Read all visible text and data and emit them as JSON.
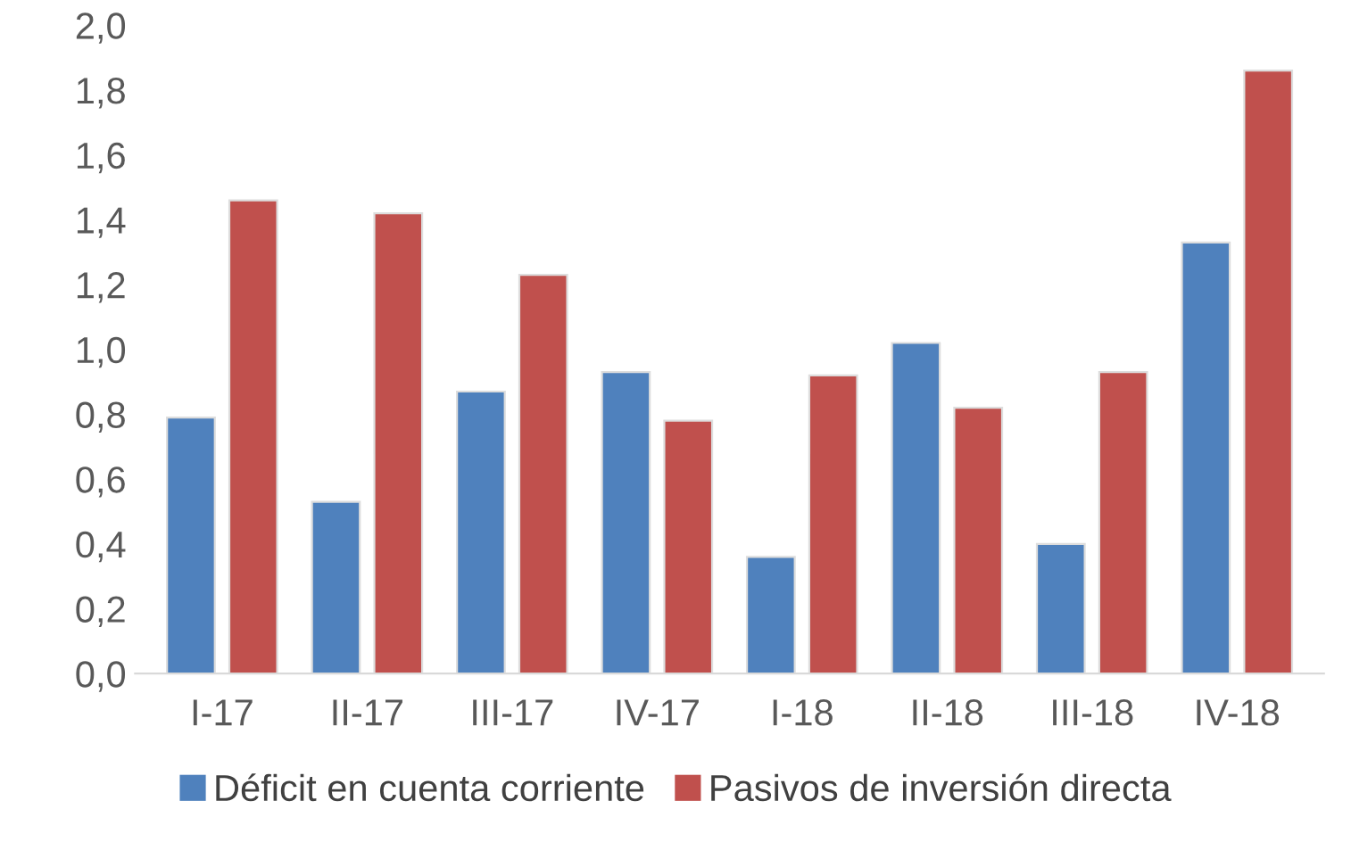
{
  "chart_data": {
    "type": "bar",
    "categories": [
      "I-17",
      "II-17",
      "III-17",
      "IV-17",
      "I-18",
      "II-18",
      "III-18",
      "IV-18"
    ],
    "series": [
      {
        "name": "Déficit en cuenta corriente",
        "color": "#4f81bd",
        "values": [
          0.79,
          0.53,
          0.87,
          0.93,
          0.36,
          1.02,
          0.4,
          1.33
        ]
      },
      {
        "name": "Pasivos de inversión directa",
        "color": "#c0504d",
        "values": [
          1.46,
          1.42,
          1.23,
          0.78,
          0.92,
          0.82,
          0.93,
          1.86
        ]
      }
    ],
    "ylim": [
      0,
      2
    ],
    "yticks": [
      {
        "value": 0,
        "label": "0,0"
      },
      {
        "value": 0.2,
        "label": "0,2"
      },
      {
        "value": 0.4,
        "label": "0,4"
      },
      {
        "value": 0.6,
        "label": "0,6"
      },
      {
        "value": 0.8,
        "label": "0,8"
      },
      {
        "value": 1.0,
        "label": "1,0"
      },
      {
        "value": 1.2,
        "label": "1,2"
      },
      {
        "value": 1.4,
        "label": "1,4"
      },
      {
        "value": 1.6,
        "label": "1,6"
      },
      {
        "value": 1.8,
        "label": "1,8"
      },
      {
        "value": 2.0,
        "label": "2,0"
      }
    ],
    "grid": false,
    "legend": "bottom"
  }
}
